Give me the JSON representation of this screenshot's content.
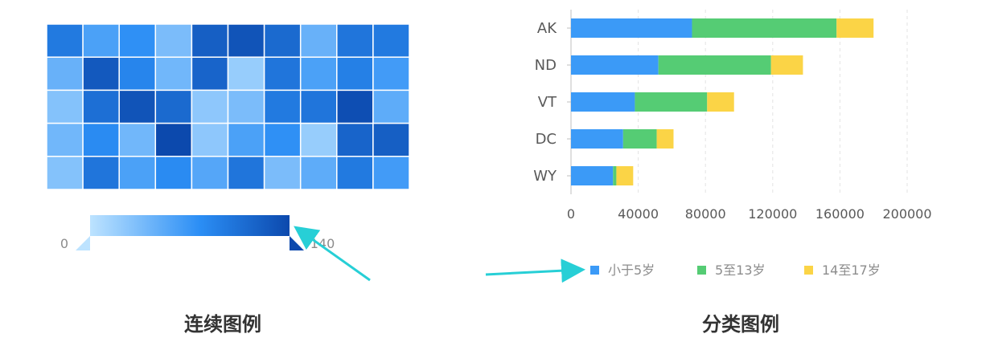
{
  "chart_data": [
    {
      "type": "heatmap",
      "rows": 5,
      "cols": 10,
      "values": [
        [
          95,
          60,
          75,
          35,
          120,
          130,
          110,
          45,
          100,
          95
        ],
        [
          45,
          125,
          85,
          40,
          115,
          20,
          100,
          60,
          90,
          65
        ],
        [
          30,
          105,
          130,
          110,
          25,
          35,
          95,
          100,
          135,
          50
        ],
        [
          40,
          80,
          40,
          140,
          25,
          60,
          75,
          20,
          115,
          120
        ],
        [
          30,
          100,
          60,
          80,
          55,
          100,
          35,
          50,
          95,
          65
        ]
      ],
      "legend": {
        "type": "continuous",
        "min_label": "0",
        "max_label": "140",
        "min": 0,
        "max": 140,
        "color_low": "#bde3ff",
        "color_mid": "#2b8ef5",
        "color_high": "#0c49ad"
      },
      "caption": "连续图例"
    },
    {
      "type": "bar",
      "orientation": "horizontal",
      "stacked": true,
      "categories": [
        "AK",
        "ND",
        "VT",
        "DC",
        "WY"
      ],
      "series": [
        {
          "name": "小于5岁",
          "values": [
            72000,
            52000,
            38000,
            31000,
            25000
          ],
          "color": "#3b9af7"
        },
        {
          "name": "5至13岁",
          "values": [
            86000,
            67000,
            43000,
            20000,
            2000
          ],
          "color": "#55cc74"
        },
        {
          "name": "14至17岁",
          "values": [
            22000,
            19000,
            16000,
            10000,
            10000
          ],
          "color": "#fbd446"
        }
      ],
      "xticks": [
        "0",
        "40000",
        "80000",
        "120000",
        "160000",
        "200000"
      ],
      "xlim": [
        0,
        200000
      ],
      "grid": "vertical-dashed",
      "legend_position": "bottom",
      "caption": "分类图例"
    }
  ]
}
